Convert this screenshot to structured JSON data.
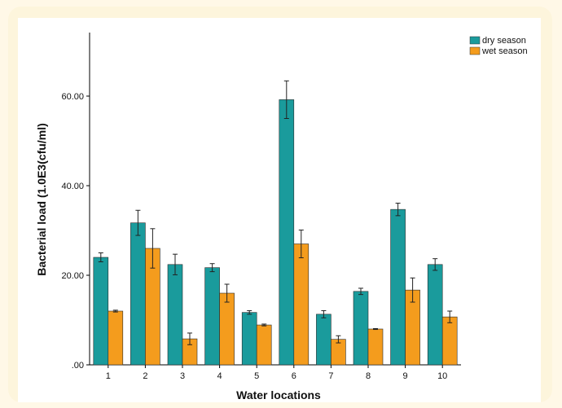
{
  "chart_data": {
    "type": "bar",
    "xlabel": "Water locations",
    "ylabel": "Bacterial load (1.0E3(cfu/ml)",
    "categories": [
      "1",
      "2",
      "3",
      "4",
      "5",
      "6",
      "7",
      "8",
      "9",
      "10"
    ],
    "ylim": [
      0,
      75
    ],
    "yticks": [
      ".00",
      "20.00",
      "40.00",
      "60.00"
    ],
    "ytick_values": [
      0,
      20,
      40,
      60
    ],
    "grid": false,
    "legend_position": "top-right",
    "series": [
      {
        "name": "dry season",
        "color": "#1a9b9c",
        "values": [
          24.0,
          31.7,
          22.4,
          21.7,
          11.7,
          59.2,
          11.3,
          16.4,
          34.7,
          22.4
        ],
        "error": [
          1.0,
          2.8,
          2.3,
          0.9,
          0.4,
          4.2,
          0.8,
          0.7,
          1.4,
          1.3
        ]
      },
      {
        "name": "wet season",
        "color": "#f49c1d",
        "values": [
          12.0,
          26.0,
          5.8,
          16.0,
          8.9,
          27.0,
          5.7,
          8.0,
          16.7,
          10.7
        ],
        "error": [
          0.2,
          4.4,
          1.3,
          2.0,
          0.2,
          3.1,
          0.8,
          0.1,
          2.7,
          1.3
        ]
      }
    ]
  }
}
